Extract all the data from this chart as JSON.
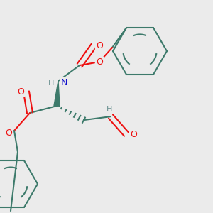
{
  "bg_color": "#ebebeb",
  "bond_color": "#3d7a6b",
  "atom_colors": {
    "O": "#ee1111",
    "N": "#1111cc",
    "H": "#6a9090",
    "C": "#3d7a6b"
  },
  "figsize": [
    3.0,
    3.0
  ],
  "dpi": 100,
  "xlim": [
    0,
    300
  ],
  "ylim": [
    0,
    300
  ]
}
